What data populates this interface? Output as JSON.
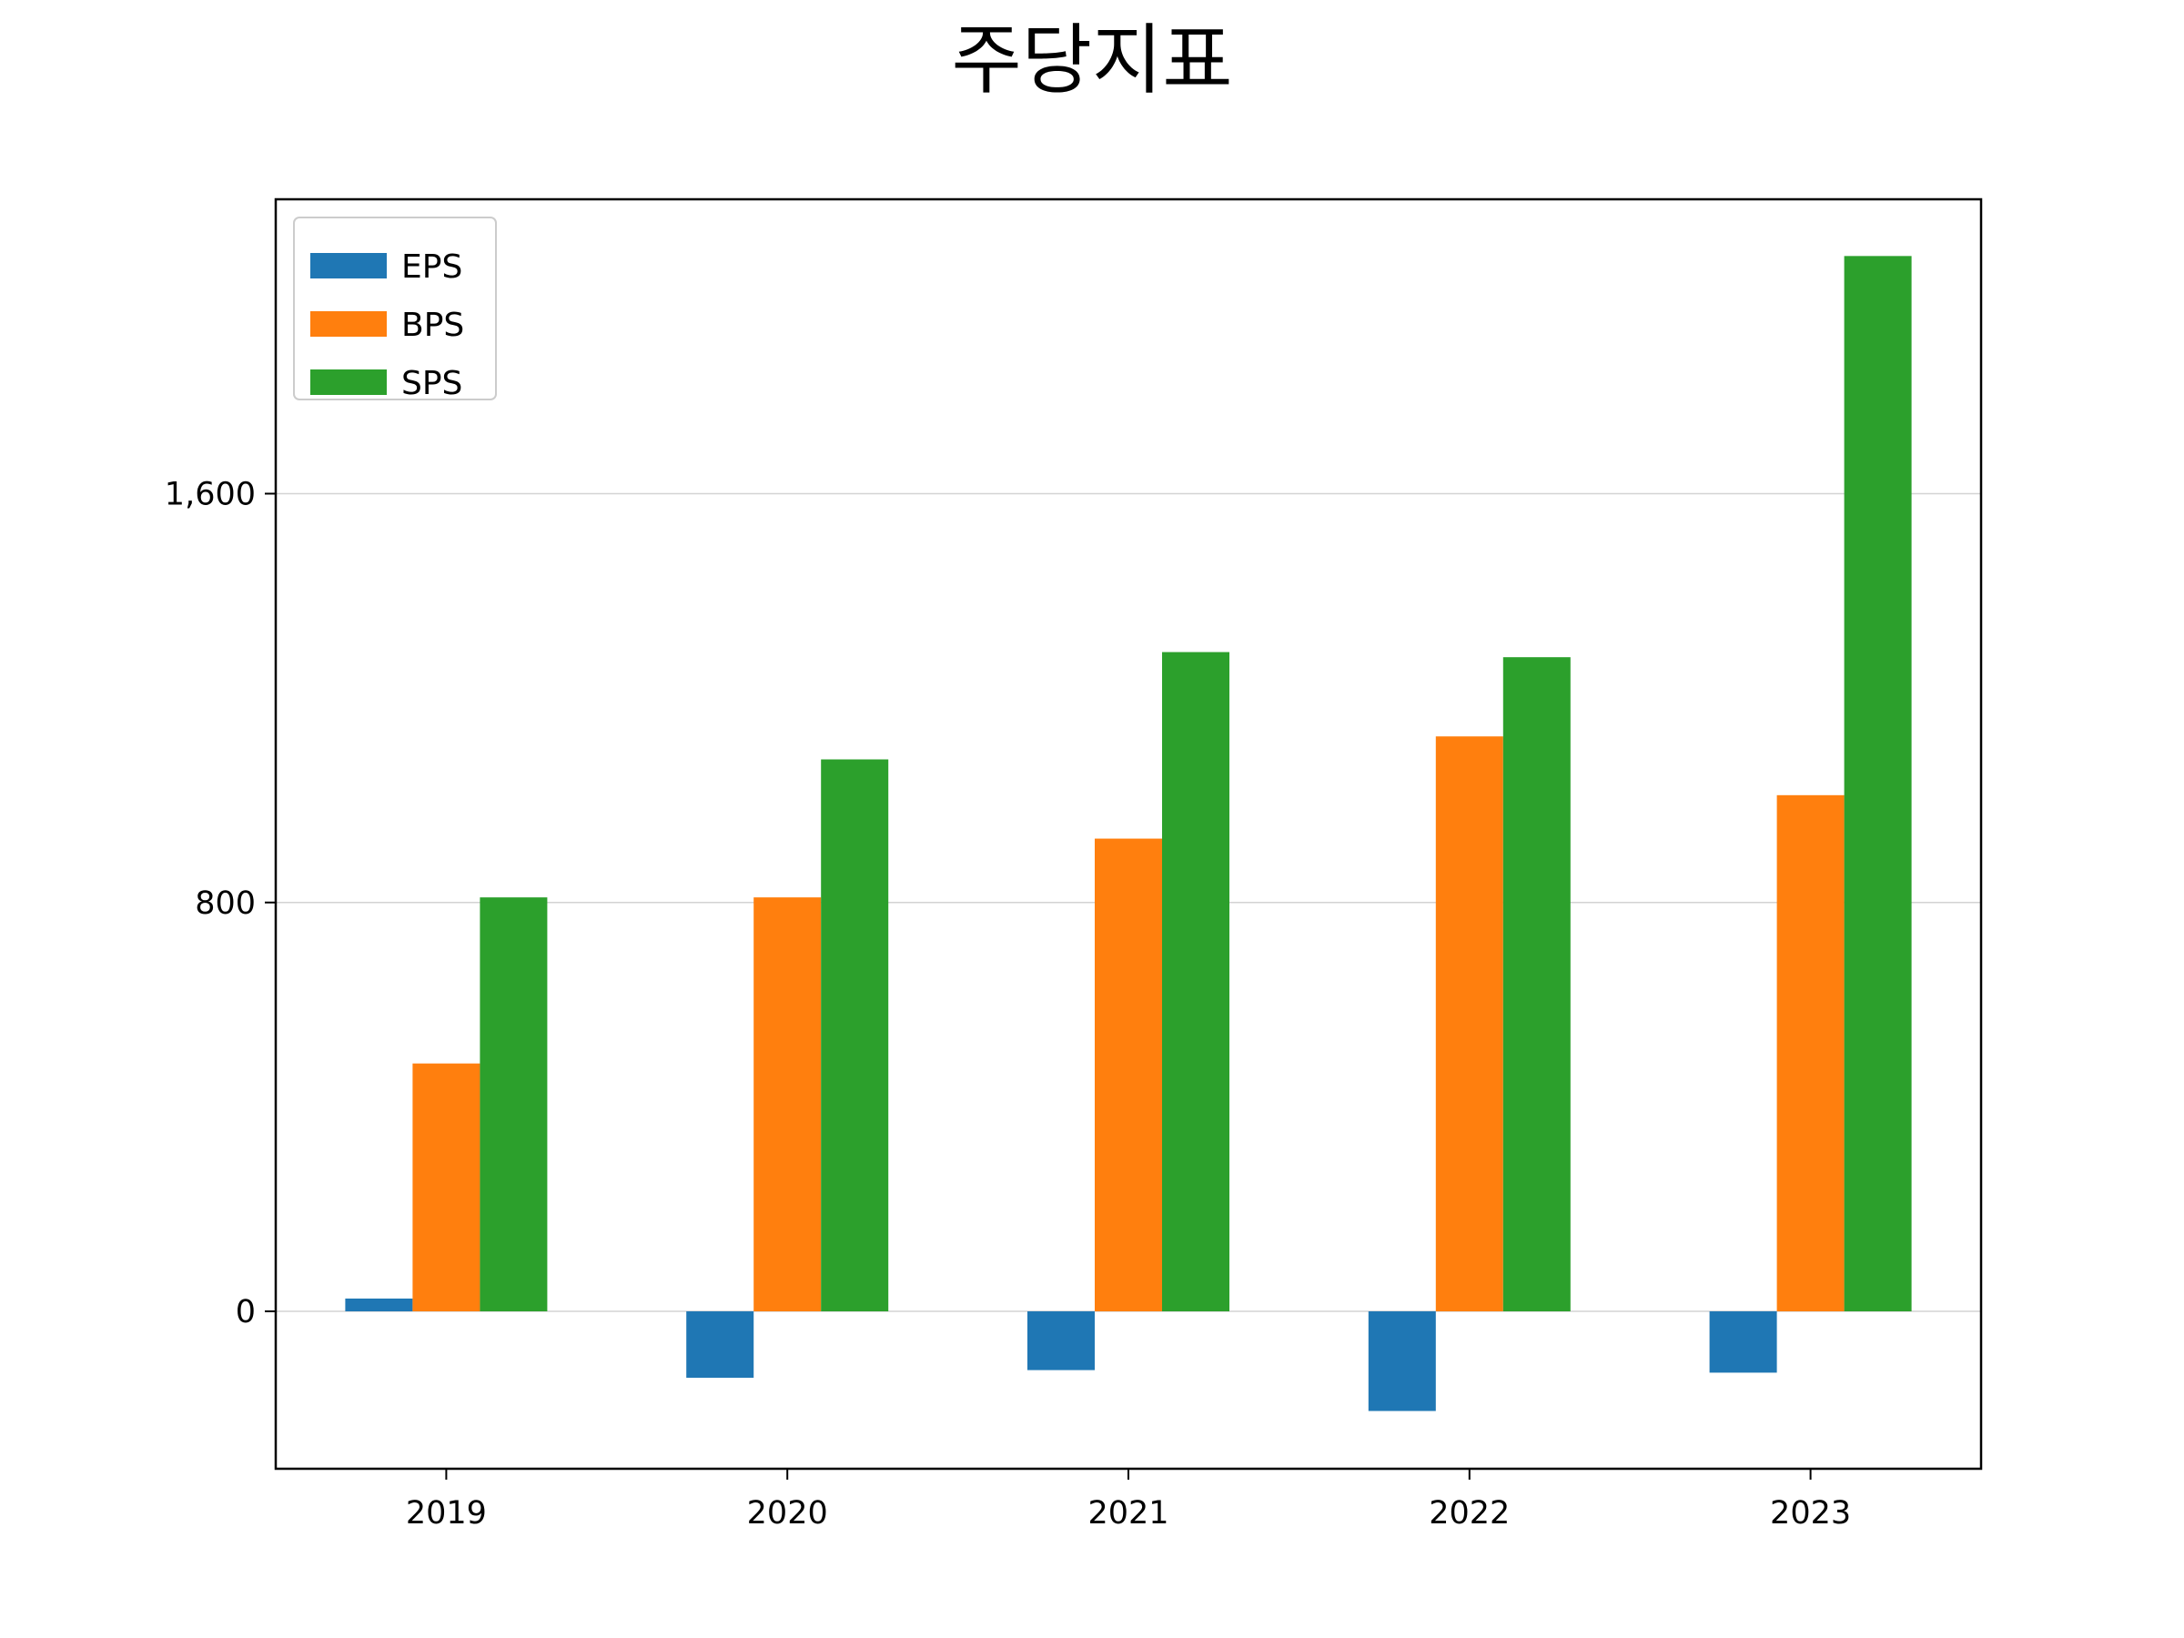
{
  "chart_data": {
    "type": "bar",
    "title": "주당지표",
    "xlabel": "",
    "ylabel": "",
    "categories": [
      "2019",
      "2020",
      "2021",
      "2022",
      "2023"
    ],
    "series": [
      {
        "name": "EPS",
        "color": "#1f77b4",
        "values": [
          25,
          -130,
          -115,
          -195,
          -120
        ]
      },
      {
        "name": "BPS",
        "color": "#ff7f0e",
        "values": [
          485,
          810,
          925,
          1125,
          1010
        ]
      },
      {
        "name": "SPS",
        "color": "#2ca02c",
        "values": [
          810,
          1080,
          1290,
          1280,
          2065
        ]
      }
    ],
    "ylim": [
      -308,
      2176
    ],
    "yticks": [
      0,
      800,
      1600
    ],
    "ytick_labels": [
      "0",
      "800",
      "1,600"
    ],
    "grid": "y",
    "legend": "top-left"
  }
}
